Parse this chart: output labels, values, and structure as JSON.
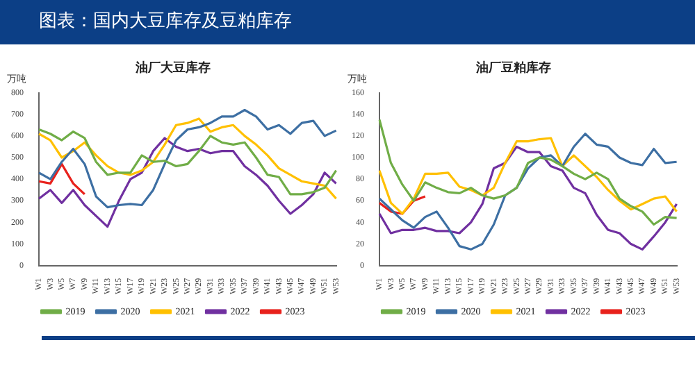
{
  "chart_data": [
    {
      "type": "line",
      "title": "油厂大豆库存",
      "ylabel": "万吨",
      "annotations": [
        "图表：国内大豆库存及豆粕库存"
      ],
      "categories": [
        "W1",
        "W3",
        "W5",
        "W7",
        "W9",
        "W11",
        "W13",
        "W15",
        "W17",
        "W19",
        "W21",
        "W23",
        "W25",
        "W27",
        "W29",
        "W31",
        "W33",
        "W35",
        "W37",
        "W39",
        "W41",
        "W43",
        "W45",
        "W47",
        "W49",
        "W51",
        "W53"
      ],
      "ylim": [
        0,
        800
      ],
      "yticks": [
        0,
        100,
        200,
        300,
        400,
        500,
        600,
        700,
        800
      ],
      "grid": false,
      "legend": "bottom",
      "marker": "none",
      "line_style": "solid",
      "series": [
        {
          "name": "2019",
          "color": "#70ad47",
          "values": [
            630,
            610,
            580,
            620,
            590,
            480,
            420,
            430,
            430,
            510,
            480,
            485,
            460,
            470,
            530,
            600,
            570,
            560,
            570,
            500,
            420,
            410,
            330,
            330,
            340,
            360,
            440
          ]
        },
        {
          "name": "2020",
          "color": "#3d6fa3",
          "values": [
            430,
            400,
            480,
            540,
            470,
            320,
            270,
            280,
            285,
            280,
            350,
            470,
            580,
            630,
            640,
            660,
            690,
            690,
            720,
            690,
            630,
            650,
            610,
            660,
            670,
            600,
            625
          ]
        },
        {
          "name": "2021",
          "color": "#ffc000",
          "values": [
            610,
            580,
            500,
            530,
            570,
            510,
            460,
            430,
            420,
            440,
            480,
            560,
            650,
            660,
            680,
            620,
            640,
            650,
            600,
            560,
            510,
            450,
            420,
            390,
            380,
            370,
            310
          ]
        },
        {
          "name": "2022",
          "color": "#7030a0",
          "values": [
            310,
            350,
            290,
            350,
            280,
            230,
            180,
            300,
            400,
            430,
            530,
            590,
            550,
            530,
            540,
            520,
            530,
            530,
            460,
            420,
            370,
            300,
            240,
            280,
            330,
            430,
            380
          ]
        },
        {
          "name": "2023",
          "color": "#e8211c",
          "values": [
            390,
            380,
            470,
            380,
            330,
            null,
            null,
            null,
            null,
            null,
            null,
            null,
            null,
            null,
            null,
            null,
            null,
            null,
            null,
            null,
            null,
            null,
            null,
            null,
            null,
            null,
            null
          ]
        }
      ]
    },
    {
      "type": "line",
      "title": "油厂豆粕库存",
      "ylabel": "万吨",
      "categories": [
        "W1",
        "W3",
        "W5",
        "W7",
        "W9",
        "W11",
        "W13",
        "W15",
        "W17",
        "W19",
        "W21",
        "W23",
        "W25",
        "W27",
        "W29",
        "W31",
        "W33",
        "W35",
        "W37",
        "W39",
        "W41",
        "W43",
        "W45",
        "W47",
        "W49",
        "W51",
        "W53"
      ],
      "ylim": [
        0,
        160
      ],
      "yticks": [
        0,
        20,
        40,
        60,
        80,
        100,
        120,
        140,
        160
      ],
      "grid": false,
      "legend": "bottom",
      "marker": "none",
      "line_style": "solid",
      "series": [
        {
          "name": "2019",
          "color": "#70ad47",
          "values": [
            135,
            95,
            75,
            60,
            77,
            72,
            68,
            67,
            72,
            65,
            62,
            65,
            72,
            95,
            100,
            98,
            92,
            85,
            80,
            86,
            80,
            62,
            55,
            50,
            38,
            45,
            44
          ]
        },
        {
          "name": "2020",
          "color": "#3d6fa3",
          "values": [
            62,
            52,
            42,
            35,
            45,
            50,
            35,
            18,
            15,
            20,
            38,
            65,
            72,
            90,
            100,
            102,
            92,
            110,
            122,
            112,
            110,
            100,
            95,
            93,
            108,
            95,
            96
          ]
        },
        {
          "name": "2021",
          "color": "#ffc000",
          "values": [
            88,
            58,
            48,
            62,
            85,
            85,
            86,
            73,
            70,
            65,
            72,
            95,
            115,
            115,
            117,
            118,
            92,
            102,
            92,
            82,
            70,
            60,
            52,
            57,
            62,
            64,
            50
          ]
        },
        {
          "name": "2022",
          "color": "#7030a0",
          "values": [
            48,
            30,
            33,
            33,
            35,
            32,
            32,
            30,
            40,
            57,
            90,
            95,
            110,
            105,
            105,
            92,
            88,
            72,
            67,
            47,
            33,
            30,
            20,
            15,
            27,
            40,
            57
          ]
        },
        {
          "name": "2023",
          "color": "#e8211c",
          "values": [
            58,
            50,
            48,
            60,
            64,
            null,
            null,
            null,
            null,
            null,
            null,
            null,
            null,
            null,
            null,
            null,
            null,
            null,
            null,
            null,
            null,
            null,
            null,
            null,
            null,
            null,
            null
          ]
        }
      ]
    }
  ]
}
